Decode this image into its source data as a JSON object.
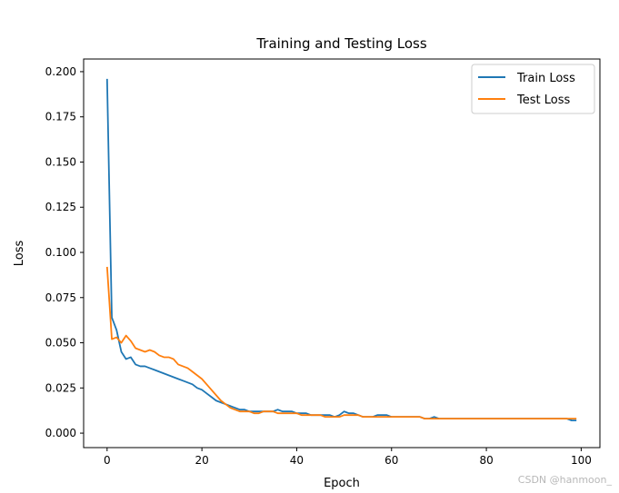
{
  "chart_data": {
    "type": "line",
    "title": "Training and Testing Loss",
    "xlabel": "Epoch",
    "ylabel": "Loss",
    "xlim": [
      -4.95,
      103.95
    ],
    "ylim": [
      -0.008,
      0.207
    ],
    "x_ticks": [
      0,
      20,
      40,
      60,
      80,
      100
    ],
    "y_ticks": [
      0.0,
      0.025,
      0.05,
      0.075,
      0.1,
      0.125,
      0.15,
      0.175,
      0.2
    ],
    "y_tick_labels": [
      "0.000",
      "0.025",
      "0.050",
      "0.075",
      "0.100",
      "0.125",
      "0.150",
      "0.175",
      "0.200"
    ],
    "grid": false,
    "legend_position": "upper-right",
    "series": [
      {
        "name": "Train Loss",
        "color": "#1f77b4",
        "values": [
          0.196,
          0.064,
          0.057,
          0.045,
          0.041,
          0.042,
          0.038,
          0.037,
          0.037,
          0.036,
          0.035,
          0.034,
          0.033,
          0.032,
          0.031,
          0.03,
          0.029,
          0.028,
          0.027,
          0.025,
          0.024,
          0.022,
          0.02,
          0.018,
          0.017,
          0.016,
          0.015,
          0.014,
          0.013,
          0.013,
          0.012,
          0.012,
          0.012,
          0.012,
          0.012,
          0.012,
          0.013,
          0.012,
          0.012,
          0.012,
          0.011,
          0.011,
          0.011,
          0.01,
          0.01,
          0.01,
          0.01,
          0.01,
          0.009,
          0.01,
          0.012,
          0.011,
          0.011,
          0.01,
          0.009,
          0.009,
          0.009,
          0.01,
          0.01,
          0.01,
          0.009,
          0.009,
          0.009,
          0.009,
          0.009,
          0.009,
          0.009,
          0.008,
          0.008,
          0.009,
          0.008,
          0.008,
          0.008,
          0.008,
          0.008,
          0.008,
          0.008,
          0.008,
          0.008,
          0.008,
          0.008,
          0.008,
          0.008,
          0.008,
          0.008,
          0.008,
          0.008,
          0.008,
          0.008,
          0.008,
          0.008,
          0.008,
          0.008,
          0.008,
          0.008,
          0.008,
          0.008,
          0.008,
          0.007,
          0.007
        ]
      },
      {
        "name": "Test Loss",
        "color": "#ff7f0e",
        "values": [
          0.092,
          0.052,
          0.053,
          0.05,
          0.054,
          0.051,
          0.047,
          0.046,
          0.045,
          0.046,
          0.045,
          0.043,
          0.042,
          0.042,
          0.041,
          0.038,
          0.037,
          0.036,
          0.034,
          0.032,
          0.03,
          0.027,
          0.024,
          0.021,
          0.018,
          0.016,
          0.014,
          0.013,
          0.012,
          0.012,
          0.012,
          0.011,
          0.011,
          0.012,
          0.012,
          0.012,
          0.011,
          0.011,
          0.011,
          0.011,
          0.011,
          0.01,
          0.01,
          0.01,
          0.01,
          0.01,
          0.009,
          0.009,
          0.009,
          0.009,
          0.01,
          0.01,
          0.01,
          0.01,
          0.009,
          0.009,
          0.009,
          0.009,
          0.009,
          0.009,
          0.009,
          0.009,
          0.009,
          0.009,
          0.009,
          0.009,
          0.009,
          0.008,
          0.008,
          0.008,
          0.008,
          0.008,
          0.008,
          0.008,
          0.008,
          0.008,
          0.008,
          0.008,
          0.008,
          0.008,
          0.008,
          0.008,
          0.008,
          0.008,
          0.008,
          0.008,
          0.008,
          0.008,
          0.008,
          0.008,
          0.008,
          0.008,
          0.008,
          0.008,
          0.008,
          0.008,
          0.008,
          0.008,
          0.008,
          0.008
        ]
      }
    ]
  },
  "watermark": "CSDN @hanmoon_"
}
